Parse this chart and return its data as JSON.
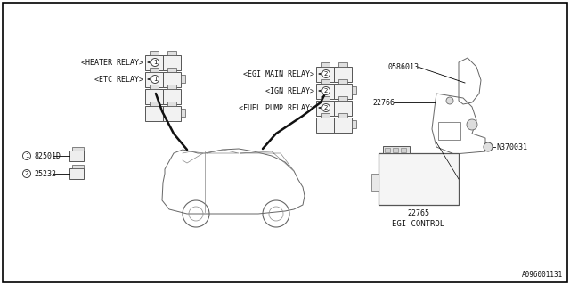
{
  "bg_color": "#ffffff",
  "border_color": "#000000",
  "diagram_ref": "A096001131",
  "labels": {
    "heater_relay": "<HEATER RELAY>",
    "etc_relay": "<ETC RELAY>",
    "egi_main_relay": "<EGI MAIN RELAY>",
    "ign_relay": "<IGN RELAY>",
    "fuel_pump_relay": "<FUEL PUMP RELAY>",
    "part1": "82501D",
    "part2": "25232",
    "part0586013": "0586013",
    "part22766": "22766",
    "partN370031": "N370031",
    "part22765": "22765",
    "egi_control": "EGI CONTROL"
  },
  "line_color": "#000000",
  "text_color": "#111111",
  "font_size": 6.0
}
